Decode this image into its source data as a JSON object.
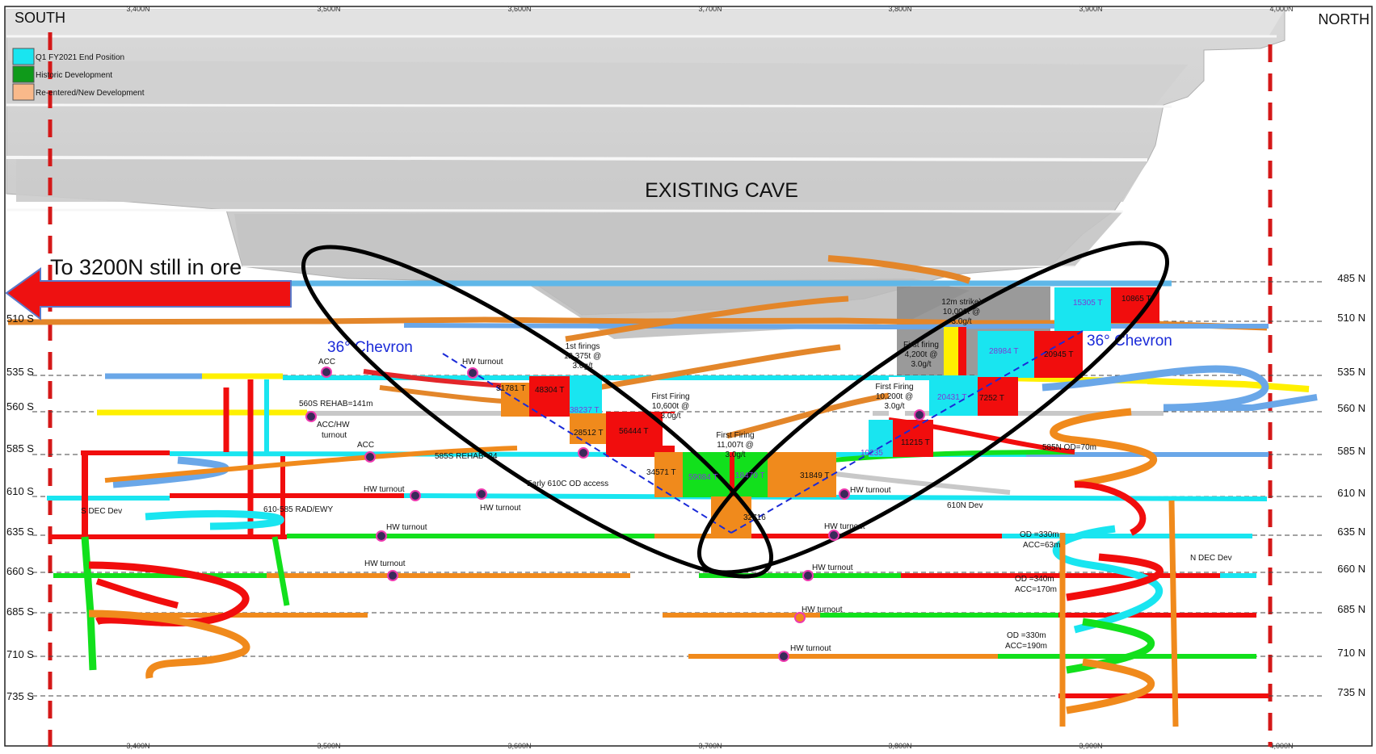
{
  "header": {
    "south": "SOUTH",
    "north": "NORTH"
  },
  "northings": [
    "3,400N",
    "3,500N",
    "3,600N",
    "3,700N",
    "3,800N",
    "3,900N",
    "4,000N"
  ],
  "legend": [
    {
      "label": "Q1 FY2021 End Position",
      "color": "#19e5f0"
    },
    {
      "label": "Historic Development",
      "color": "#0f9a1a"
    },
    {
      "label": "Re-entered/New Development",
      "color": "#f9b98a"
    }
  ],
  "cave_label": "EXISTING CAVE",
  "arrow_label": "To 3200N still in ore",
  "chevron_label_left": "36° Chevron",
  "chevron_label_right": "36° Chevron",
  "levels_south": [
    "510 S",
    "535 S",
    "560 S",
    "585 S",
    "610 S",
    "635 S",
    "660 S",
    "685 S",
    "710 S",
    "735 S"
  ],
  "levels_north": [
    "485 N",
    "510 N",
    "535 N",
    "560 N",
    "585 N",
    "610 N",
    "635 N",
    "660 N",
    "685 N",
    "710 N",
    "735 N"
  ],
  "notes": {
    "acc_535": "ACC",
    "rehab_560": "560S REHAB=141m",
    "acc_hw": "ACC/HW",
    "turnout": "turnout",
    "acc_585": "ACC",
    "rehab_585": "585S REHAB=24",
    "hw_1": "HW turnout",
    "hw_2": "HW turnout",
    "hw_3": "HW turnout",
    "hw_4": "HW turnout",
    "hw_5": "HW turnout",
    "hw_6": "HW turnout",
    "hw_7": "HW turnout",
    "hw_8": "HW turnout",
    "hw_9": "HW turnout",
    "hw_10": "HW turnout",
    "hw_11": "HW turnout",
    "dec_dev": "S DEC Dev",
    "rad": "610-585 RAD/EWY",
    "early": "Early 610C OD access",
    "n610": "610N Dev",
    "ndec": "N DEC Dev",
    "od_585": "585N OD=70m",
    "od_635": "OD =330m",
    "acc_635": "ACC=63m",
    "od_660": "OD =340m",
    "acc_660": "ACC=170m",
    "od_710": "OD =330m",
    "acc_710": "ACC=190m"
  },
  "firings": {
    "f1": [
      "1st firings",
      "12,375t @",
      "3.0g/t"
    ],
    "f2": [
      "First Firing",
      "10,600t @",
      "3.0g/t"
    ],
    "f3": [
      "First Firing",
      "11,007t @",
      "3.0g/t"
    ],
    "f4": [
      "12m strike)",
      "10,000t @",
      "3.0g/t"
    ],
    "f5": [
      "First firing",
      "4,200t @",
      "3.0g/t"
    ],
    "f6": [
      "First Firing",
      "10,200t @",
      "3.0g/t"
    ]
  },
  "tonnages": {
    "t1": "31781 T",
    "t2": "48304 T",
    "t3": "38237 T",
    "t4": "28512 T",
    "t5": "56444 T",
    "t6": "34571 T",
    "t7": "59084 T",
    "t8": "18470 T",
    "t9": "31849 T",
    "t10": "32716",
    "t11": "15305 T",
    "t12": "10865 T",
    "t13": "28984 T",
    "t14": "20945 T",
    "t15": "20431 T",
    "t16": "7252 T",
    "t17": "10235",
    "t18": "11215 T"
  },
  "colors": {
    "cyan": "#19e5f0",
    "green": "#12e01c",
    "orange": "#f08a1c",
    "red": "#f10d0d",
    "yellow": "#fff000",
    "gray": "#c8c8c8"
  }
}
